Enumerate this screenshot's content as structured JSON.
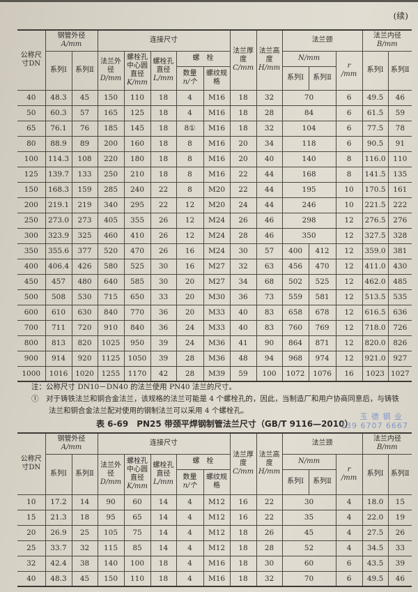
{
  "continued_label": "(续)",
  "header": {
    "dn": "公称尺寸DN",
    "pipe_od": "钢管外径",
    "pipe_od_unit": "A/mm",
    "series1": "系列Ⅰ",
    "series2": "系列Ⅱ",
    "connection": "连接尺寸",
    "flange_od": "法兰外径",
    "flange_od_unit": "D/mm",
    "bolt_circle": "螺栓孔中心圆直径",
    "bolt_circle_unit": "K/mm",
    "bolt_hole": "螺栓孔直径",
    "bolt_hole_unit": "L/mm",
    "bolt": "螺　栓",
    "bolt_qty": "数量",
    "bolt_qty_unit": "n/个",
    "thread": "螺纹规格",
    "thickness": "法兰厚度",
    "thickness_unit": "C/mm",
    "height": "法兰高度",
    "height_unit": "H/mm",
    "neck": "法兰颈",
    "neck_n_unit": "N/mm",
    "neck_r": "r",
    "neck_r_unit": "/mm",
    "bore": "法兰内径",
    "bore_unit": "B/mm"
  },
  "table1_rows": [
    [
      "40",
      "48.3",
      "45",
      "150",
      "110",
      "18",
      "4",
      "M16",
      "18",
      "32",
      "70",
      null,
      "6",
      "49.5",
      "46"
    ],
    [
      "50",
      "60.3",
      "57",
      "165",
      "125",
      "18",
      "4",
      "M16",
      "18",
      "28",
      "84",
      null,
      "6",
      "61.5",
      "59"
    ],
    [
      "65",
      "76.1",
      "76",
      "185",
      "145",
      "18",
      "8①",
      "M16",
      "18",
      "32",
      "104",
      null,
      "6",
      "77.5",
      "78"
    ],
    [
      "80",
      "88.9",
      "89",
      "200",
      "160",
      "18",
      "8",
      "M16",
      "20",
      "34",
      "118",
      null,
      "6",
      "90.5",
      "91"
    ],
    [
      "100",
      "114.3",
      "108",
      "220",
      "180",
      "18",
      "8",
      "M16",
      "20",
      "40",
      "140",
      null,
      "8",
      "116.0",
      "110"
    ],
    [
      "125",
      "139.7",
      "133",
      "250",
      "210",
      "18",
      "8",
      "M16",
      "22",
      "44",
      "168",
      null,
      "8",
      "141.5",
      "135"
    ],
    [
      "150",
      "168.3",
      "159",
      "285",
      "240",
      "22",
      "8",
      "M20",
      "22",
      "44",
      "195",
      null,
      "10",
      "170.5",
      "161"
    ],
    [
      "200",
      "219.1",
      "219",
      "340",
      "295",
      "22",
      "12",
      "M20",
      "24",
      "44",
      "246",
      null,
      "10",
      "221.5",
      "222"
    ],
    [
      "250",
      "273.0",
      "273",
      "405",
      "355",
      "26",
      "12",
      "M24",
      "26",
      "46",
      "298",
      null,
      "12",
      "276.5",
      "276"
    ],
    [
      "300",
      "323.9",
      "325",
      "460",
      "410",
      "26",
      "12",
      "M24",
      "28",
      "46",
      "350",
      null,
      "12",
      "327.5",
      "328"
    ],
    [
      "350",
      "355.6",
      "377",
      "520",
      "470",
      "26",
      "16",
      "M24",
      "30",
      "57",
      "400",
      "412",
      "12",
      "359.0",
      "381"
    ],
    [
      "400",
      "406.4",
      "426",
      "580",
      "525",
      "30",
      "16",
      "M27",
      "32",
      "63",
      "456",
      "470",
      "12",
      "411.0",
      "430"
    ],
    [
      "450",
      "457",
      "480",
      "640",
      "585",
      "30",
      "20",
      "M27",
      "34",
      "68",
      "502",
      "525",
      "12",
      "462.0",
      "485"
    ],
    [
      "500",
      "508",
      "530",
      "715",
      "650",
      "33",
      "20",
      "M30",
      "36",
      "73",
      "559",
      "581",
      "12",
      "513.5",
      "535"
    ],
    [
      "600",
      "610",
      "630",
      "840",
      "770",
      "36",
      "20",
      "M33",
      "40",
      "83",
      "658",
      "678",
      "12",
      "616.5",
      "636"
    ],
    [
      "700",
      "711",
      "720",
      "910",
      "840",
      "36",
      "24",
      "M33",
      "40",
      "83",
      "760",
      "769",
      "12",
      "718.0",
      "726"
    ],
    [
      "800",
      "813",
      "820",
      "1025",
      "950",
      "39",
      "24",
      "M36",
      "41",
      "90",
      "864",
      "871",
      "12",
      "820.0",
      "826"
    ],
    [
      "900",
      "914",
      "920",
      "1125",
      "1050",
      "39",
      "28",
      "M36",
      "48",
      "94",
      "968",
      "974",
      "12",
      "921.0",
      "927"
    ],
    [
      "1000",
      "1016",
      "1020",
      "1255",
      "1170",
      "42",
      "28",
      "M39",
      "59",
      "100",
      "1072",
      "1076",
      "16",
      "1023",
      "1027"
    ]
  ],
  "notes": {
    "note1": "注：公称尺寸 DN10－DN40 的法兰使用 PN40 法兰的尺寸。",
    "note2_line1": "①　对于铸铁法兰和铜合金法兰，该规格的法兰可能是 4 个螺栓孔的，因此，当制造厂和用户协商同意后，与铸铁",
    "note2_line2": "法兰和铜合金法兰配对使用的钢制法兰可以采用 4 个螺栓孔。"
  },
  "table2_title": "表 6-69　PN25 带颈平焊钢制管法兰尺寸（GB/T 9116—2010）",
  "watermark": {
    "company": "玉 德 钢 业",
    "phone": "139 6707 6667",
    "color": "#7e96c8"
  },
  "table2_rows": [
    [
      "10",
      "17.2",
      "14",
      "90",
      "60",
      "14",
      "4",
      "M12",
      "16",
      "22",
      "30",
      null,
      "4",
      "18.0",
      "15"
    ],
    [
      "15",
      "21.3",
      "18",
      "95",
      "65",
      "14",
      "4",
      "M12",
      "16",
      "22",
      "35",
      null,
      "4",
      "22.0",
      "19"
    ],
    [
      "20",
      "26.9",
      "25",
      "105",
      "75",
      "14",
      "4",
      "M12",
      "18",
      "26",
      "45",
      null,
      "4",
      "27.5",
      "26"
    ],
    [
      "25",
      "33.7",
      "32",
      "115",
      "85",
      "14",
      "4",
      "M12",
      "18",
      "28",
      "52",
      null,
      "4",
      "34.5",
      "33"
    ],
    [
      "32",
      "42.4",
      "38",
      "140",
      "100",
      "18",
      "4",
      "M16",
      "18",
      "30",
      "60",
      null,
      "6",
      "43.5",
      "39"
    ],
    [
      "40",
      "48.3",
      "45",
      "150",
      "110",
      "18",
      "4",
      "M16",
      "18",
      "32",
      "70",
      null,
      "6",
      "49.5",
      "46"
    ]
  ]
}
